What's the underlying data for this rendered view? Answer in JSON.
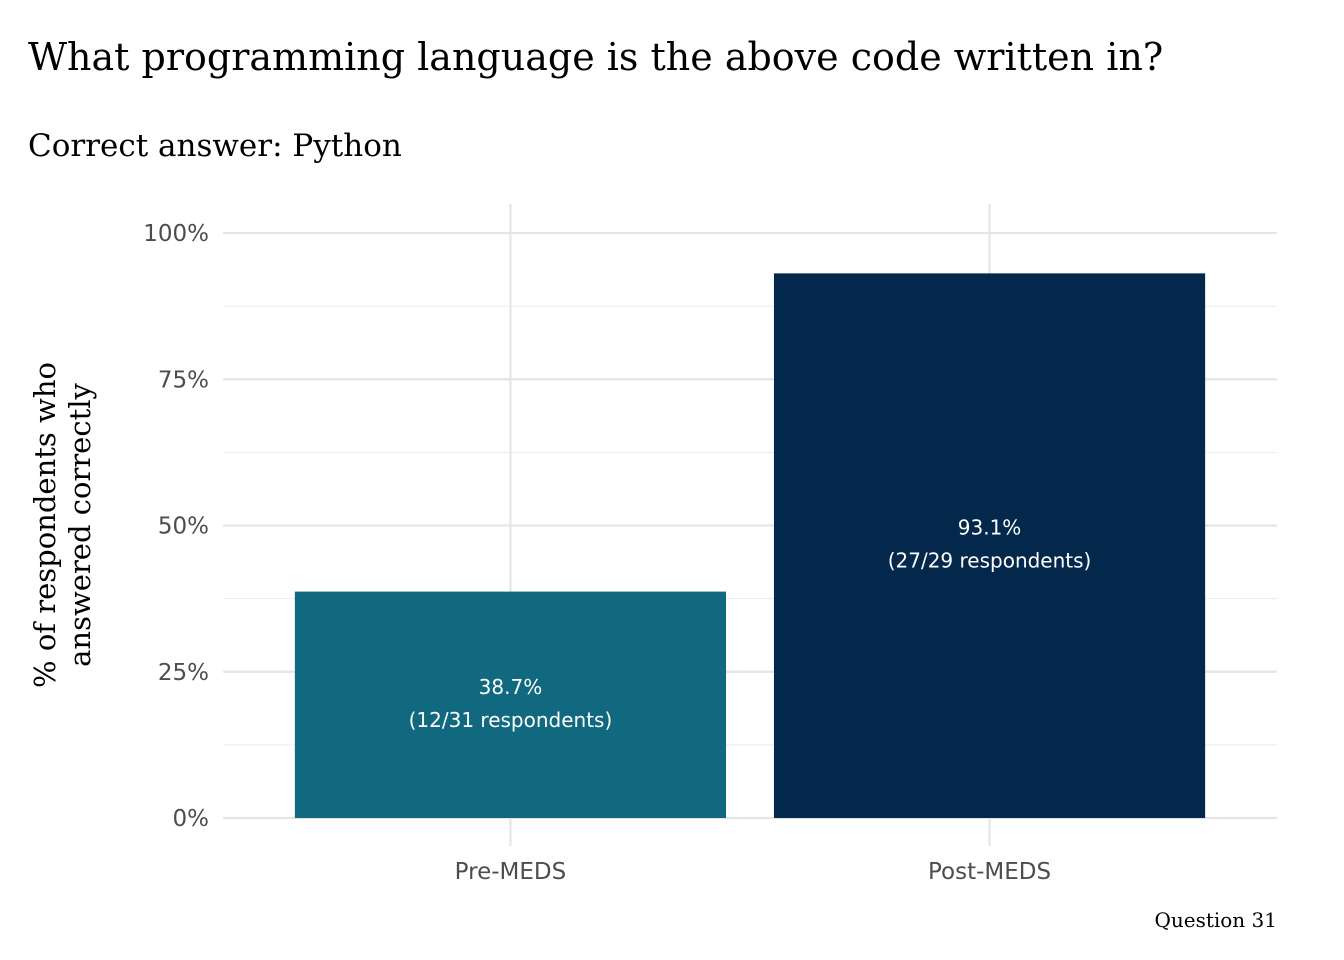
{
  "chart_data": {
    "type": "bar",
    "title": "What programming language is the above code written in?",
    "subtitle": "Correct answer: Python",
    "xlabel": "",
    "ylabel_lines": [
      "% of respondents who",
      "answered correctly"
    ],
    "caption": "Question 31",
    "categories": [
      "Pre-MEDS",
      "Post-MEDS"
    ],
    "values": [
      38.7,
      93.1
    ],
    "bar_labels": [
      [
        "38.7%",
        "(12/31 respondents)"
      ],
      [
        "93.1%",
        "(27/29 respondents)"
      ]
    ],
    "colors": [
      "#10697f",
      "#04284c"
    ],
    "ylim": [
      0,
      100
    ],
    "y_ticks": [
      0,
      25,
      50,
      75,
      100
    ],
    "y_tick_labels": [
      "0%",
      "25%",
      "50%",
      "75%",
      "100%"
    ],
    "y_minor_ticks": [
      12.5,
      37.5,
      62.5,
      87.5
    ],
    "grid": true,
    "legend": "none"
  }
}
